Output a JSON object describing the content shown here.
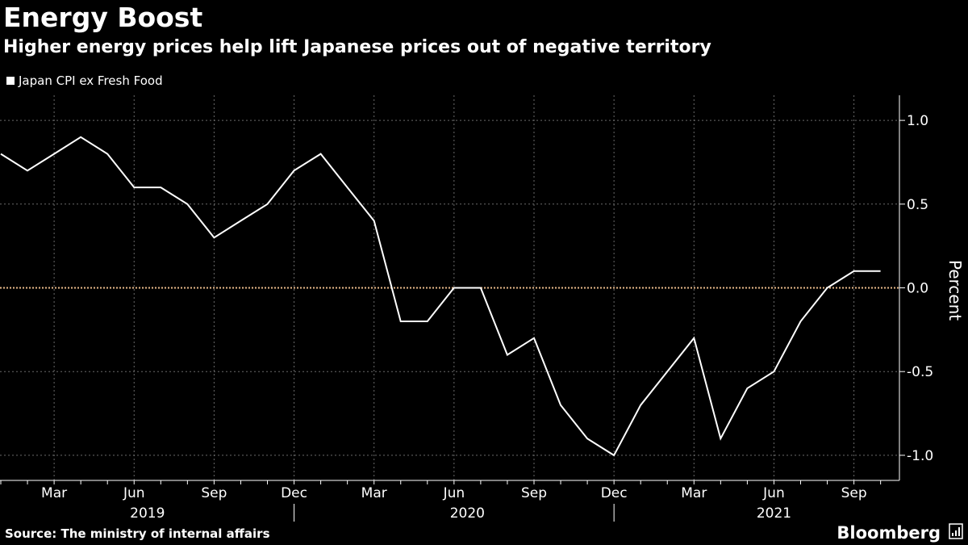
{
  "header": {
    "title": "Energy Boost",
    "subtitle": "Higher energy prices help lift Japanese prices out of negative territory"
  },
  "legend": {
    "entries": [
      "Japan CPI ex Fresh Food"
    ]
  },
  "footer": {
    "source": "Source: The ministry of internal affairs",
    "brand": "Bloomberg"
  },
  "colors": {
    "background": "#000000",
    "line": "#ffffff",
    "zero_line": "#e8b98a",
    "grid": "#6a6a6a"
  },
  "chart_data": {
    "type": "line",
    "title": "Energy Boost",
    "subtitle": "Higher energy prices help lift Japanese prices out of negative territory",
    "ylabel": "Percent",
    "xlabel": "",
    "ylim": [
      -1.15,
      1.15
    ],
    "yticks": [
      1.0,
      0.5,
      0.0,
      -0.5,
      -1.0
    ],
    "ytick_labels": [
      "1.0",
      "0.5",
      "0.0",
      "-0.5",
      "-1.0"
    ],
    "grid": true,
    "legend_position": "top-left",
    "x_month_ticks": [
      {
        "index": 2,
        "label": "Mar"
      },
      {
        "index": 5,
        "label": "Jun"
      },
      {
        "index": 8,
        "label": "Sep"
      },
      {
        "index": 11,
        "label": "Dec"
      },
      {
        "index": 14,
        "label": "Mar"
      },
      {
        "index": 17,
        "label": "Jun"
      },
      {
        "index": 20,
        "label": "Sep"
      },
      {
        "index": 23,
        "label": "Dec"
      },
      {
        "index": 26,
        "label": "Mar"
      },
      {
        "index": 29,
        "label": "Jun"
      },
      {
        "index": 32,
        "label": "Sep"
      }
    ],
    "x_year_labels": [
      {
        "center_index": 5.5,
        "label": "2019"
      },
      {
        "center_index": 17.5,
        "label": "2020"
      },
      {
        "center_index": 29,
        "label": "2021"
      }
    ],
    "year_dividers": [
      11,
      23
    ],
    "x": [
      "2019-01",
      "2019-02",
      "2019-03",
      "2019-04",
      "2019-05",
      "2019-06",
      "2019-07",
      "2019-08",
      "2019-09",
      "2019-10",
      "2019-11",
      "2019-12",
      "2020-01",
      "2020-02",
      "2020-03",
      "2020-04",
      "2020-05",
      "2020-06",
      "2020-07",
      "2020-08",
      "2020-09",
      "2020-10",
      "2020-11",
      "2020-12",
      "2021-01",
      "2021-02",
      "2021-03",
      "2021-04",
      "2021-05",
      "2021-06",
      "2021-07",
      "2021-08",
      "2021-09",
      "2021-10"
    ],
    "series": [
      {
        "name": "Japan CPI ex Fresh Food",
        "values": [
          0.8,
          0.7,
          0.8,
          0.9,
          0.8,
          0.6,
          0.6,
          0.5,
          0.3,
          0.4,
          0.5,
          0.7,
          0.8,
          0.6,
          0.4,
          -0.2,
          -0.2,
          0.0,
          0.0,
          -0.4,
          -0.3,
          -0.7,
          -0.9,
          -1.0,
          -0.7,
          -0.5,
          -0.3,
          -0.9,
          -0.6,
          -0.5,
          -0.2,
          0.0,
          0.1,
          0.1
        ]
      }
    ]
  }
}
